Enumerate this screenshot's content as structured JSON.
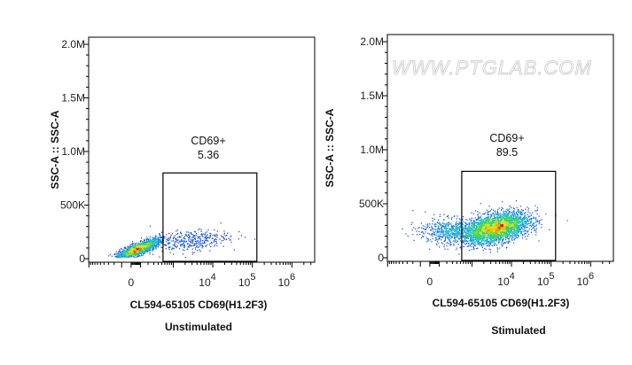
{
  "chart_data": [
    {
      "type": "scatter",
      "subtitle": "Unstimulated",
      "xlabel": "CL594-65105 CD69(H1.2F3)",
      "ylabel": "SSC-A :: SSC-A",
      "xscale": "biexponential",
      "xlim": [
        -1015,
        3750000
      ],
      "ylim": [
        -33000,
        2066000
      ],
      "yticks": [
        {
          "v": 0,
          "label": "0"
        },
        {
          "v": 500000,
          "label": "500K"
        },
        {
          "v": 1000000,
          "label": "1.0M"
        },
        {
          "v": 1500000,
          "label": "1.5M"
        },
        {
          "v": 2000000,
          "label": "2.0M"
        }
      ],
      "xticks": [
        {
          "v": 0,
          "base": "0",
          "exp": ""
        },
        {
          "v": 10000,
          "base": "10",
          "exp": "4"
        },
        {
          "v": 100000,
          "base": "10",
          "exp": "5"
        },
        {
          "v": 1000000,
          "base": "10",
          "exp": "6"
        }
      ],
      "gate": {
        "name": "CD69+",
        "value": "5.36",
        "x": [
          540,
          130000
        ],
        "y": [
          0,
          800000
        ]
      },
      "populations": [
        {
          "n": 1900,
          "x": 60,
          "y": 90000,
          "sdx_decades": 0.28,
          "sdy": 28000,
          "tilt": 40000
        },
        {
          "n": 380,
          "x": 2500,
          "y": 170000,
          "sdx_decades": 0.5,
          "sdy": 50000,
          "tilt": 20000
        }
      ],
      "watermark": ""
    },
    {
      "type": "scatter",
      "subtitle": "Stimulated",
      "xlabel": "CL594-65105 CD69(H1.2F3)",
      "ylabel": "SSC-A :: SSC-A",
      "xscale": "biexponential",
      "xlim": [
        -1015,
        3750000
      ],
      "ylim": [
        -33000,
        2066000
      ],
      "yticks": [
        {
          "v": 0,
          "label": "0"
        },
        {
          "v": 500000,
          "label": "500K"
        },
        {
          "v": 1000000,
          "label": "1.0M"
        },
        {
          "v": 1500000,
          "label": "1.5M"
        },
        {
          "v": 2000000,
          "label": "2.0M"
        }
      ],
      "xticks": [
        {
          "v": 0,
          "base": "0",
          "exp": ""
        },
        {
          "v": 10000,
          "base": "10",
          "exp": "4"
        },
        {
          "v": 100000,
          "base": "10",
          "exp": "5"
        },
        {
          "v": 1000000,
          "base": "10",
          "exp": "6"
        }
      ],
      "gate": {
        "name": "CD69+",
        "value": "89.5",
        "x": [
          540,
          130000
        ],
        "y": [
          0,
          800000
        ]
      },
      "populations": [
        {
          "n": 3200,
          "x": 4000,
          "y": 280000,
          "sdx_decades": 0.42,
          "sdy": 65000,
          "tilt": 30000
        },
        {
          "n": 600,
          "x": 250,
          "y": 250000,
          "sdx_decades": 0.4,
          "sdy": 60000,
          "tilt": 0
        }
      ],
      "watermark": "WWW.PTGLAB.COM"
    }
  ]
}
